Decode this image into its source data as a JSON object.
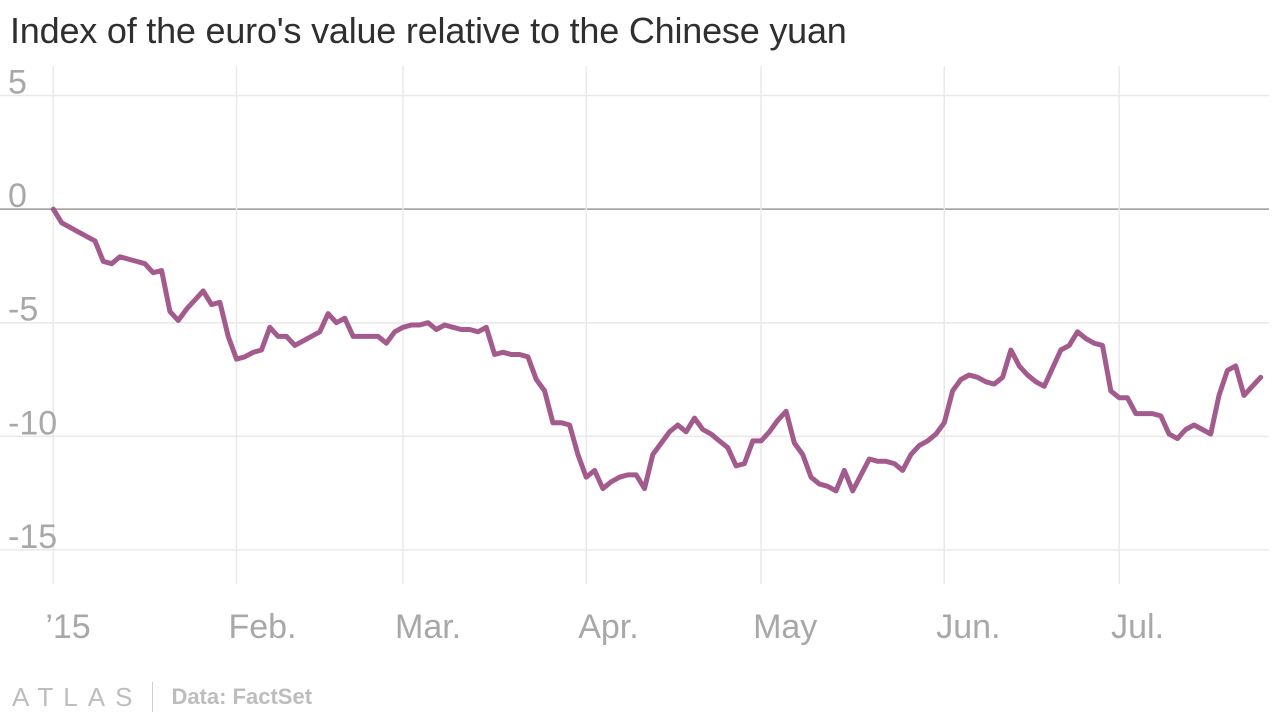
{
  "title": "Index of the euro's value relative to the Chinese yuan",
  "footer": {
    "logo": "ATLAS",
    "source": "Data: FactSet"
  },
  "colors": {
    "line": "#a35b8e",
    "grid": "#e9e9e9",
    "zero": "#9a9a9a",
    "label": "#a8a8a8"
  },
  "chart_data": {
    "type": "line",
    "title": "Index of the euro's value relative to the Chinese yuan",
    "xlabel": "",
    "ylabel": "",
    "ylim": [
      -16.5,
      6.3
    ],
    "xlim": [
      -1,
      146
    ],
    "yticks": [
      5,
      0,
      -5,
      -10,
      -15
    ],
    "xticks": [
      {
        "label": "’15",
        "x": 0
      },
      {
        "label": "Feb.",
        "x": 22
      },
      {
        "label": "Mar.",
        "x": 42
      },
      {
        "label": "Apr.",
        "x": 64
      },
      {
        "label": "May",
        "x": 85
      },
      {
        "label": "Jun.",
        "x": 107
      },
      {
        "label": "Jul.",
        "x": 128
      }
    ],
    "series": [
      {
        "values": [
          [
            0,
            0
          ],
          [
            1,
            -0.6
          ],
          [
            2,
            -0.8
          ],
          [
            3,
            -1.0
          ],
          [
            4,
            -1.2
          ],
          [
            5,
            -1.4
          ],
          [
            6,
            -2.3
          ],
          [
            7,
            -2.4
          ],
          [
            8,
            -2.1
          ],
          [
            9,
            -2.2
          ],
          [
            10,
            -2.3
          ],
          [
            11,
            -2.4
          ],
          [
            12,
            -2.8
          ],
          [
            13,
            -2.7
          ],
          [
            14,
            -4.5
          ],
          [
            15,
            -4.9
          ],
          [
            16,
            -4.4
          ],
          [
            17,
            -4.0
          ],
          [
            18,
            -3.6
          ],
          [
            19,
            -4.2
          ],
          [
            20,
            -4.1
          ],
          [
            21,
            -5.6
          ],
          [
            22,
            -6.6
          ],
          [
            23,
            -6.5
          ],
          [
            24,
            -6.3
          ],
          [
            25,
            -6.2
          ],
          [
            26,
            -5.2
          ],
          [
            27,
            -5.6
          ],
          [
            28,
            -5.6
          ],
          [
            29,
            -6.0
          ],
          [
            30,
            -5.8
          ],
          [
            31,
            -5.6
          ],
          [
            32,
            -5.4
          ],
          [
            33,
            -4.6
          ],
          [
            34,
            -5.0
          ],
          [
            35,
            -4.8
          ],
          [
            36,
            -5.6
          ],
          [
            37,
            -5.6
          ],
          [
            38,
            -5.6
          ],
          [
            39,
            -5.6
          ],
          [
            40,
            -5.9
          ],
          [
            41,
            -5.4
          ],
          [
            42,
            -5.2
          ],
          [
            43,
            -5.1
          ],
          [
            44,
            -5.1
          ],
          [
            45,
            -5.0
          ],
          [
            46,
            -5.3
          ],
          [
            47,
            -5.1
          ],
          [
            48,
            -5.2
          ],
          [
            49,
            -5.3
          ],
          [
            50,
            -5.3
          ],
          [
            51,
            -5.4
          ],
          [
            52,
            -5.2
          ],
          [
            53,
            -6.4
          ],
          [
            54,
            -6.3
          ],
          [
            55,
            -6.4
          ],
          [
            56,
            -6.4
          ],
          [
            57,
            -6.5
          ],
          [
            58,
            -7.5
          ],
          [
            59,
            -8.0
          ],
          [
            60,
            -9.4
          ],
          [
            61,
            -9.4
          ],
          [
            62,
            -9.5
          ],
          [
            63,
            -10.8
          ],
          [
            64,
            -11.8
          ],
          [
            65,
            -11.5
          ],
          [
            66,
            -12.3
          ],
          [
            67,
            -12.0
          ],
          [
            68,
            -11.8
          ],
          [
            69,
            -11.7
          ],
          [
            70,
            -11.7
          ],
          [
            71,
            -12.3
          ],
          [
            72,
            -10.8
          ],
          [
            73,
            -10.3
          ],
          [
            74,
            -9.8
          ],
          [
            75,
            -9.5
          ],
          [
            76,
            -9.8
          ],
          [
            77,
            -9.2
          ],
          [
            78,
            -9.7
          ],
          [
            79,
            -9.9
          ],
          [
            80,
            -10.2
          ],
          [
            81,
            -10.5
          ],
          [
            82,
            -11.3
          ],
          [
            83,
            -11.2
          ],
          [
            84,
            -10.2
          ],
          [
            85,
            -10.2
          ],
          [
            86,
            -9.8
          ],
          [
            87,
            -9.3
          ],
          [
            88,
            -8.9
          ],
          [
            89,
            -10.3
          ],
          [
            90,
            -10.8
          ],
          [
            91,
            -11.8
          ],
          [
            92,
            -12.1
          ],
          [
            93,
            -12.2
          ],
          [
            94,
            -12.4
          ],
          [
            95,
            -11.5
          ],
          [
            96,
            -12.4
          ],
          [
            97,
            -11.7
          ],
          [
            98,
            -11.0
          ],
          [
            99,
            -11.1
          ],
          [
            100,
            -11.1
          ],
          [
            101,
            -11.2
          ],
          [
            102,
            -11.5
          ],
          [
            103,
            -10.8
          ],
          [
            104,
            -10.4
          ],
          [
            105,
            -10.2
          ],
          [
            106,
            -9.9
          ],
          [
            107,
            -9.4
          ],
          [
            108,
            -8.0
          ],
          [
            109,
            -7.5
          ],
          [
            110,
            -7.3
          ],
          [
            111,
            -7.4
          ],
          [
            112,
            -7.6
          ],
          [
            113,
            -7.7
          ],
          [
            114,
            -7.4
          ],
          [
            115,
            -6.2
          ],
          [
            116,
            -6.9
          ],
          [
            117,
            -7.3
          ],
          [
            118,
            -7.6
          ],
          [
            119,
            -7.8
          ],
          [
            120,
            -7.0
          ],
          [
            121,
            -6.2
          ],
          [
            122,
            -6.0
          ],
          [
            123,
            -5.4
          ],
          [
            124,
            -5.7
          ],
          [
            125,
            -5.9
          ],
          [
            126,
            -6.0
          ],
          [
            127,
            -8.0
          ],
          [
            128,
            -8.3
          ],
          [
            129,
            -8.3
          ],
          [
            130,
            -9.0
          ],
          [
            131,
            -9.0
          ],
          [
            132,
            -9.0
          ],
          [
            133,
            -9.1
          ],
          [
            134,
            -9.9
          ],
          [
            135,
            -10.1
          ],
          [
            136,
            -9.7
          ],
          [
            137,
            -9.5
          ],
          [
            138,
            -9.7
          ],
          [
            139,
            -9.9
          ],
          [
            140,
            -8.2
          ],
          [
            141,
            -7.1
          ],
          [
            142,
            -6.9
          ],
          [
            143,
            -8.2
          ],
          [
            144,
            -7.8
          ],
          [
            145,
            -7.4
          ]
        ]
      }
    ]
  }
}
